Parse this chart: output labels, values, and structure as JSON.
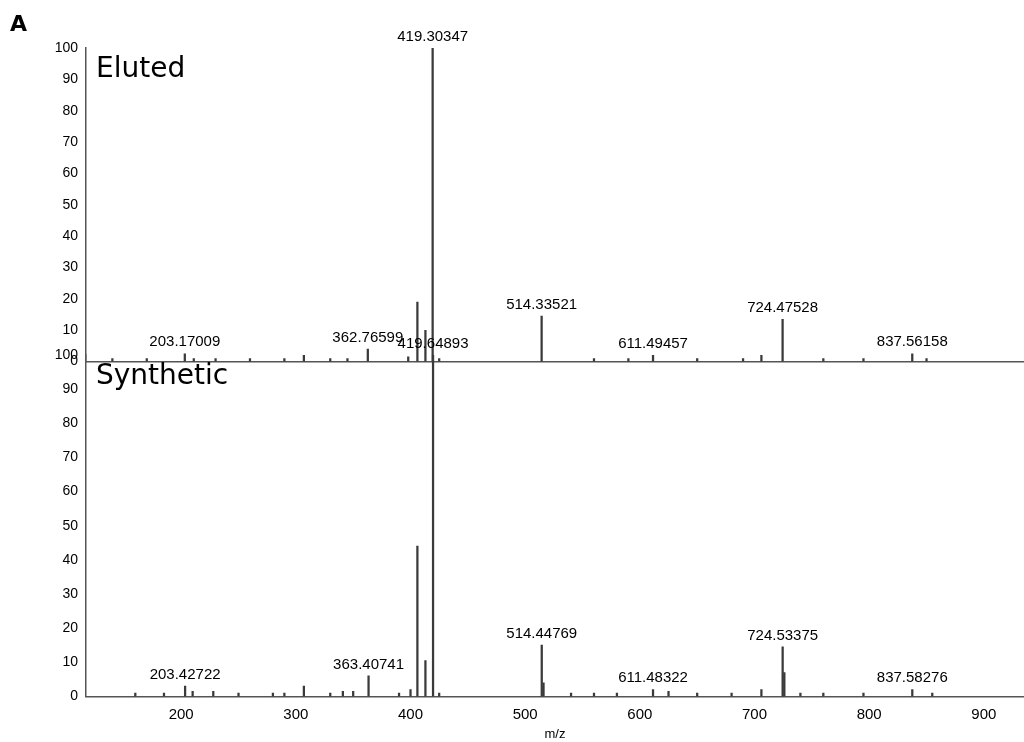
{
  "chart_data": [
    {
      "type": "bar",
      "title": "Eluted",
      "tick_labels": "y",
      "color": "#3a3a3a",
      "x": [
        140,
        170,
        203.17,
        211,
        230,
        260,
        290,
        307,
        330,
        345,
        362.77,
        398,
        406,
        413,
        419.3,
        425,
        514.34,
        560,
        590,
        611.49,
        650,
        690,
        706,
        724.48,
        760,
        795,
        837.56,
        850
      ],
      "values": [
        1,
        1,
        2.5,
        1,
        1,
        1,
        1,
        2,
        1,
        1,
        4,
        1.5,
        19,
        10,
        100,
        1,
        14.5,
        1,
        1,
        2,
        1,
        1,
        2,
        13.5,
        1,
        1,
        2.5,
        1
      ],
      "xlim": [
        117,
        935
      ],
      "ylim": [
        0,
        100
      ],
      "yticks": [
        0,
        10,
        20,
        30,
        40,
        50,
        60,
        70,
        80,
        90,
        100
      ],
      "annotations": [
        "A",
        {
          "text": "419.30347",
          "x": 419.3,
          "y": 100
        },
        {
          "text": "203.17009",
          "x": 203.17,
          "y": 2.5
        },
        {
          "text": "362.76599",
          "x": 362.77,
          "y": 4
        },
        {
          "text": "514.33521",
          "x": 514.34,
          "y": 14.5
        },
        {
          "text": "611.49457",
          "x": 611.49,
          "y": 2
        },
        {
          "text": "724.47528",
          "x": 724.48,
          "y": 13.5
        },
        {
          "text": "837.56158",
          "x": 837.56,
          "y": 2.5
        }
      ]
    },
    {
      "type": "bar",
      "title": "Synthetic",
      "xlabel": "m/z",
      "color": "#3a3a3a",
      "x": [
        160,
        185,
        203.43,
        210,
        228,
        250,
        280,
        290,
        307,
        330,
        341,
        350,
        363.41,
        390,
        400,
        406,
        413,
        419.65,
        425,
        514.45,
        516,
        540,
        560,
        580,
        611.48,
        625,
        650,
        680,
        706,
        724.53,
        726,
        740,
        760,
        795,
        837.58,
        855
      ],
      "values": [
        1,
        1,
        3,
        1.5,
        1.5,
        1,
        1,
        1,
        3,
        1,
        1.5,
        1.5,
        6,
        1,
        2,
        44,
        10.5,
        100,
        1,
        15,
        4,
        1,
        1,
        1,
        2,
        1.5,
        1,
        1,
        2,
        14.5,
        7,
        1,
        1,
        1,
        2,
        1
      ],
      "xlim": [
        117,
        935
      ],
      "ylim": [
        0,
        100
      ],
      "xticks": [
        200,
        300,
        400,
        500,
        600,
        700,
        800,
        900
      ],
      "yticks": [
        0,
        10,
        20,
        30,
        40,
        50,
        60,
        70,
        80,
        90,
        100
      ],
      "annotations": [
        {
          "text": "419.64893",
          "x": 419.65,
          "y": 100
        },
        {
          "text": "203.42722",
          "x": 203.43,
          "y": 3
        },
        {
          "text": "363.40741",
          "x": 363.41,
          "y": 6
        },
        {
          "text": "514.44769",
          "x": 514.45,
          "y": 15
        },
        {
          "text": "611.48322",
          "x": 611.48,
          "y": 2
        },
        {
          "text": "724.53375",
          "x": 724.53,
          "y": 14.5
        },
        {
          "text": "837.58276",
          "x": 837.58,
          "y": 2
        }
      ]
    }
  ]
}
